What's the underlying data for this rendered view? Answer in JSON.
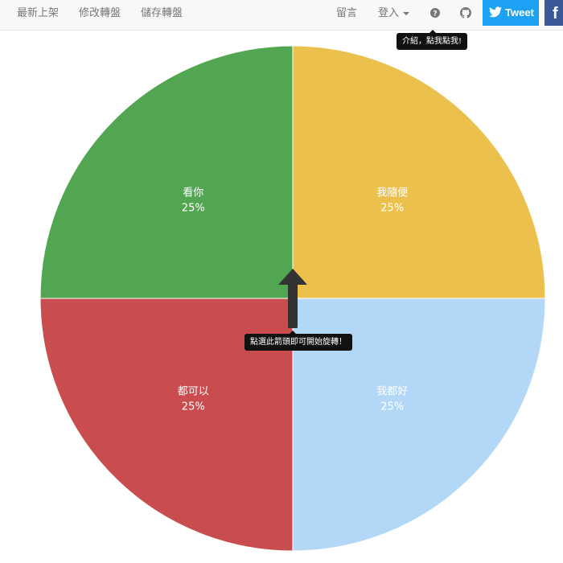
{
  "navbar": {
    "left_items": [
      {
        "label": "最新上架"
      },
      {
        "label": "修改轉盤"
      },
      {
        "label": "儲存轉盤"
      }
    ],
    "message_label": "留言",
    "login_label": "登入",
    "help_icon": "question-circle-icon",
    "github_icon": "github-icon",
    "tweet_label": "Tweet",
    "facebook_label": "f"
  },
  "tooltips": {
    "intro": "介紹，點我點我!",
    "spin": "點選此箭頭即可開始旋轉！"
  },
  "colors": {
    "green": "#53a651",
    "yellow": "#ecc04d",
    "red": "#c94c4e",
    "blue": "#b3d8f7"
  },
  "chart_data": {
    "type": "pie",
    "slices": [
      {
        "label": "我隨便",
        "value": 25,
        "percent": "25%",
        "color": "#ecc04d"
      },
      {
        "label": "我都好",
        "value": 25,
        "percent": "25%",
        "color": "#b3d8f7"
      },
      {
        "label": "都可以",
        "value": 25,
        "percent": "25%",
        "color": "#c94c4e"
      },
      {
        "label": "看你",
        "value": 25,
        "percent": "25%",
        "color": "#53a651"
      }
    ]
  }
}
